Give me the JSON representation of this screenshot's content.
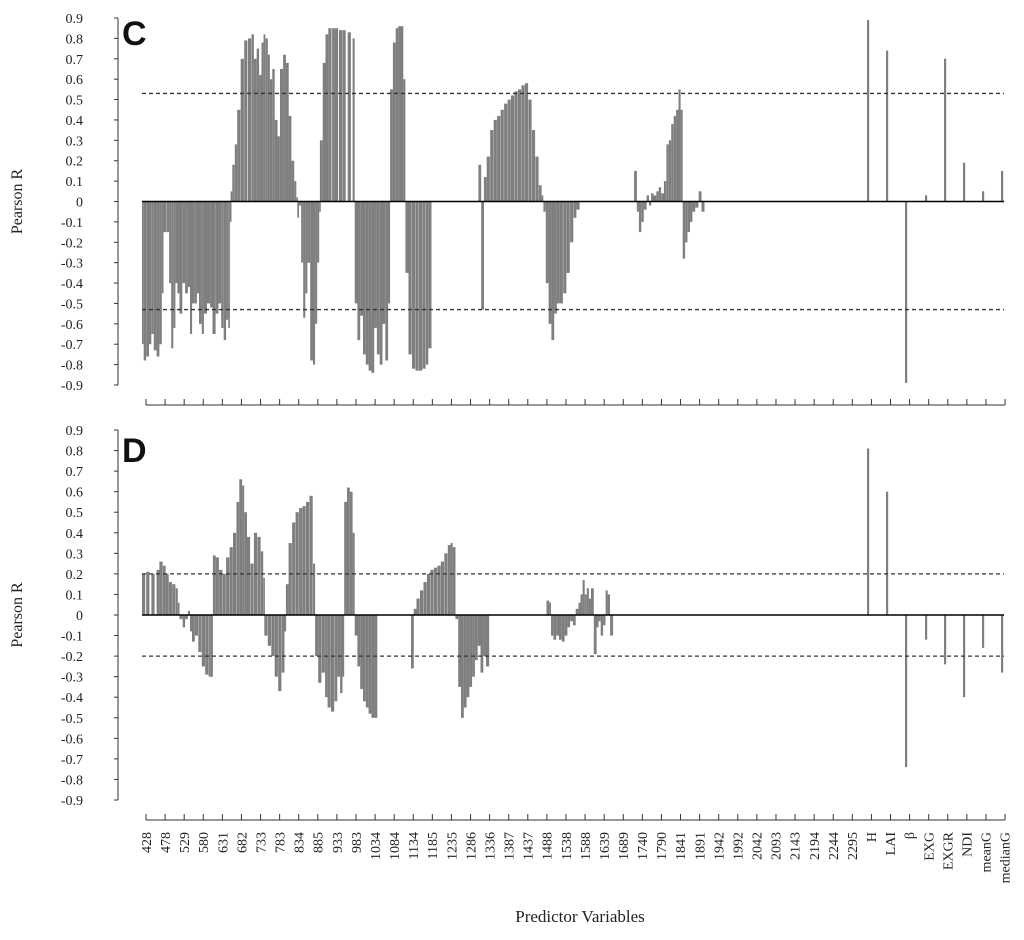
{
  "colors": {
    "bar": "#7f7f7f",
    "axis": "#333333",
    "threshold": "#333333"
  },
  "x_axis": {
    "title": "Predictor Variables",
    "wavelength_ticks": [
      "428",
      "478",
      "529",
      "580",
      "631",
      "682",
      "733",
      "783",
      "834",
      "885",
      "933",
      "983",
      "1034",
      "1084",
      "1134",
      "1185",
      "1235",
      "1286",
      "1336",
      "1387",
      "1437",
      "1488",
      "1538",
      "1588",
      "1639",
      "1689",
      "1740",
      "1790",
      "1841",
      "1891",
      "1942",
      "1992",
      "2042",
      "2093",
      "2143",
      "2194",
      "2244",
      "2295"
    ],
    "index_ticks": [
      "H",
      "LAI",
      "β",
      "EXG",
      "EXGR",
      "NDI",
      "meanG",
      "medianG"
    ]
  },
  "chart_data": [
    {
      "type": "bar",
      "panel": "C",
      "ylabel": "Pearson R",
      "ylim": [
        -0.9,
        0.9
      ],
      "y_ticks": [
        "0.9",
        "0.8",
        "0.7",
        "0.6",
        "0.5",
        "0.4",
        "0.3",
        "0.2",
        "0.1",
        "0",
        "-0.1",
        "-0.2",
        "-0.3",
        "-0.4",
        "-0.5",
        "-0.6",
        "-0.7",
        "-0.8",
        "-0.9"
      ],
      "thresholds": [
        0.53,
        -0.53
      ],
      "spectral_profile": [
        [
          428,
          -0.7
        ],
        [
          433,
          -0.78
        ],
        [
          440,
          -0.76
        ],
        [
          448,
          -0.7
        ],
        [
          455,
          -0.65
        ],
        [
          462,
          -0.73
        ],
        [
          470,
          -0.76
        ],
        [
          478,
          -0.7
        ],
        [
          485,
          -0.45
        ],
        [
          490,
          -0.15
        ],
        [
          500,
          -0.15
        ],
        [
          506,
          -0.4
        ],
        [
          512,
          -0.72
        ],
        [
          518,
          -0.62
        ],
        [
          524,
          -0.4
        ],
        [
          530,
          -0.45
        ],
        [
          536,
          -0.55
        ],
        [
          544,
          -0.4
        ],
        [
          552,
          -0.45
        ],
        [
          560,
          -0.42
        ],
        [
          566,
          -0.65
        ],
        [
          572,
          -0.5
        ],
        [
          580,
          -0.5
        ],
        [
          586,
          -0.45
        ],
        [
          592,
          -0.6
        ],
        [
          600,
          -0.65
        ],
        [
          606,
          -0.55
        ],
        [
          615,
          -0.5
        ],
        [
          624,
          -0.52
        ],
        [
          631,
          -0.65
        ],
        [
          640,
          -0.55
        ],
        [
          648,
          -0.5
        ],
        [
          656,
          -0.62
        ],
        [
          663,
          -0.68
        ],
        [
          670,
          -0.58
        ],
        [
          676,
          -0.62
        ],
        [
          681,
          -0.1
        ],
        [
          683,
          0.05
        ],
        [
          688,
          0.18
        ],
        [
          695,
          0.28
        ],
        [
          702,
          0.45
        ],
        [
          712,
          0.7
        ],
        [
          722,
          0.79
        ],
        [
          733,
          0.8
        ],
        [
          743,
          0.82
        ],
        [
          750,
          0.7
        ],
        [
          758,
          0.75
        ],
        [
          765,
          0.62
        ],
        [
          772,
          0.78
        ],
        [
          778,
          0.82
        ],
        [
          783,
          0.8
        ],
        [
          790,
          0.72
        ],
        [
          796,
          0.6
        ],
        [
          803,
          0.65
        ],
        [
          810,
          0.4
        ],
        [
          818,
          0.32
        ],
        [
          825,
          0.65
        ],
        [
          834,
          0.72
        ],
        [
          842,
          0.68
        ],
        [
          850,
          0.42
        ],
        [
          858,
          0.2
        ],
        [
          866,
          0.1
        ],
        [
          872,
          0.02
        ],
        [
          875,
          -0.08
        ],
        [
          880,
          -0.02
        ],
        [
          886,
          -0.3
        ],
        [
          892,
          -0.57
        ],
        [
          898,
          -0.45
        ],
        [
          904,
          -0.3
        ],
        [
          912,
          -0.78
        ],
        [
          920,
          -0.8
        ],
        [
          926,
          -0.6
        ],
        [
          932,
          -0.3
        ],
        [
          938,
          -0.05
        ],
        [
          940,
          0.3
        ],
        [
          948,
          0.68
        ],
        [
          956,
          0.82
        ],
        [
          964,
          0.85
        ],
        [
          975,
          0.85
        ],
        [
          983,
          0.85
        ],
        [
          995,
          0.84
        ],
        [
          1005,
          0.84
        ],
        [
          1020,
          0.83
        ],
        [
          1034,
          0.8
        ],
        [
          1040,
          -0.5
        ],
        [
          1048,
          -0.68
        ],
        [
          1056,
          -0.56
        ],
        [
          1064,
          -0.75
        ],
        [
          1072,
          -0.8
        ],
        [
          1080,
          -0.83
        ],
        [
          1088,
          -0.84
        ],
        [
          1096,
          -0.62
        ],
        [
          1104,
          -0.75
        ],
        [
          1112,
          -0.8
        ],
        [
          1120,
          -0.6
        ],
        [
          1128,
          -0.78
        ],
        [
          1136,
          -0.5
        ],
        [
          1142,
          0.55
        ],
        [
          1150,
          0.78
        ],
        [
          1158,
          0.85
        ],
        [
          1165,
          0.86
        ],
        [
          1172,
          0.86
        ],
        [
          1180,
          0.6
        ],
        [
          1186,
          -0.35
        ],
        [
          1195,
          -0.75
        ],
        [
          1205,
          -0.82
        ],
        [
          1215,
          -0.83
        ],
        [
          1225,
          -0.83
        ],
        [
          1235,
          -0.82
        ],
        [
          1245,
          -0.8
        ],
        [
          1252,
          -0.72
        ],
        [
          1396,
          0.18
        ],
        [
          1404,
          -0.53
        ],
        [
          1412,
          0.12
        ],
        [
          1420,
          0.22
        ],
        [
          1430,
          0.35
        ],
        [
          1440,
          0.4
        ],
        [
          1450,
          0.42
        ],
        [
          1460,
          0.45
        ],
        [
          1470,
          0.48
        ],
        [
          1480,
          0.5
        ],
        [
          1490,
          0.52
        ],
        [
          1500,
          0.54
        ],
        [
          1510,
          0.55
        ],
        [
          1520,
          0.57
        ],
        [
          1530,
          0.58
        ],
        [
          1540,
          0.5
        ],
        [
          1550,
          0.35
        ],
        [
          1560,
          0.22
        ],
        [
          1570,
          0.08
        ],
        [
          1578,
          0.03
        ],
        [
          1583,
          -0.05
        ],
        [
          1590,
          -0.4
        ],
        [
          1598,
          -0.6
        ],
        [
          1606,
          -0.68
        ],
        [
          1614,
          -0.55
        ],
        [
          1622,
          -0.5
        ],
        [
          1630,
          -0.5
        ],
        [
          1640,
          -0.45
        ],
        [
          1650,
          -0.35
        ],
        [
          1660,
          -0.2
        ],
        [
          1670,
          -0.08
        ],
        [
          1678,
          -0.04
        ],
        [
          1844,
          0.15
        ],
        [
          1852,
          -0.05
        ],
        [
          1858,
          -0.15
        ],
        [
          1865,
          -0.1
        ],
        [
          1872,
          -0.04
        ],
        [
          1880,
          0.03
        ],
        [
          1887,
          -0.02
        ],
        [
          1893,
          0.04
        ],
        [
          1900,
          0.03
        ],
        [
          1908,
          0.05
        ],
        [
          1915,
          0.07
        ],
        [
          1922,
          0.04
        ],
        [
          1930,
          0.1
        ],
        [
          1937,
          0.28
        ],
        [
          1944,
          0.3
        ],
        [
          1951,
          0.38
        ],
        [
          1958,
          0.42
        ],
        [
          1965,
          0.45
        ],
        [
          1972,
          0.55
        ],
        [
          1978,
          0.45
        ],
        [
          1984,
          -0.28
        ],
        [
          1991,
          -0.2
        ],
        [
          1998,
          -0.15
        ],
        [
          2005,
          -0.1
        ],
        [
          2012,
          -0.05
        ],
        [
          2020,
          -0.03
        ],
        [
          2030,
          0.05
        ],
        [
          2038,
          -0.05
        ]
      ],
      "indices": [
        {
          "name": "H",
          "r": 0.89
        },
        {
          "name": "LAI",
          "r": 0.74
        },
        {
          "name": "β",
          "r": -0.89
        },
        {
          "name": "EXG",
          "r": 0.03
        },
        {
          "name": "EXGR",
          "r": 0.7
        },
        {
          "name": "NDI",
          "r": 0.19
        },
        {
          "name": "meanG",
          "r": 0.05
        },
        {
          "name": "medianG",
          "r": 0.15
        }
      ]
    },
    {
      "type": "bar",
      "panel": "D",
      "ylabel": "Pearson R",
      "ylim": [
        -0.9,
        0.9
      ],
      "y_ticks": [
        "0.9",
        "0.8",
        "0.7",
        "0.6",
        "0.5",
        "0.4",
        "0.3",
        "0.2",
        "0.1",
        "0",
        "-0.1",
        "-0.2",
        "-0.3",
        "-0.4",
        "-0.5",
        "-0.6",
        "-0.7",
        "-0.8",
        "-0.9"
      ],
      "thresholds": [
        0.2,
        -0.2
      ],
      "spectral_profile": [
        [
          428,
          0.2
        ],
        [
          440,
          0.21
        ],
        [
          455,
          0.2
        ],
        [
          470,
          0.22
        ],
        [
          478,
          0.26
        ],
        [
          488,
          0.24
        ],
        [
          496,
          0.2
        ],
        [
          505,
          0.16
        ],
        [
          515,
          0.15
        ],
        [
          525,
          0.13
        ],
        [
          531,
          0.06
        ],
        [
          536,
          -0.02
        ],
        [
          545,
          -0.06
        ],
        [
          552,
          -0.02
        ],
        [
          560,
          0.02
        ],
        [
          566,
          -0.08
        ],
        [
          572,
          -0.13
        ],
        [
          580,
          -0.1
        ],
        [
          590,
          -0.18
        ],
        [
          600,
          -0.25
        ],
        [
          610,
          -0.29
        ],
        [
          620,
          -0.3
        ],
        [
          626,
          -0.3
        ],
        [
          632,
          0.29
        ],
        [
          640,
          0.28
        ],
        [
          650,
          0.22
        ],
        [
          660,
          0.2
        ],
        [
          670,
          0.28
        ],
        [
          680,
          0.33
        ],
        [
          690,
          0.4
        ],
        [
          700,
          0.55
        ],
        [
          708,
          0.66
        ],
        [
          716,
          0.63
        ],
        [
          722,
          0.5
        ],
        [
          730,
          0.38
        ],
        [
          740,
          0.25
        ],
        [
          750,
          0.4
        ],
        [
          760,
          0.38
        ],
        [
          770,
          0.31
        ],
        [
          777,
          0.18
        ],
        [
          780,
          -0.1
        ],
        [
          790,
          -0.15
        ],
        [
          800,
          -0.2
        ],
        [
          810,
          -0.3
        ],
        [
          820,
          -0.37
        ],
        [
          830,
          -0.28
        ],
        [
          838,
          -0.08
        ],
        [
          842,
          0.15
        ],
        [
          850,
          0.35
        ],
        [
          860,
          0.45
        ],
        [
          870,
          0.5
        ],
        [
          880,
          0.52
        ],
        [
          890,
          0.53
        ],
        [
          900,
          0.55
        ],
        [
          910,
          0.58
        ],
        [
          920,
          0.25
        ],
        [
          926,
          -0.2
        ],
        [
          935,
          -0.33
        ],
        [
          945,
          -0.28
        ],
        [
          955,
          -0.4
        ],
        [
          962,
          -0.45
        ],
        [
          972,
          -0.47
        ],
        [
          982,
          -0.42
        ],
        [
          990,
          -0.3
        ],
        [
          998,
          -0.38
        ],
        [
          1005,
          -0.3
        ],
        [
          1010,
          0.55
        ],
        [
          1018,
          0.62
        ],
        [
          1026,
          0.6
        ],
        [
          1034,
          0.4
        ],
        [
          1040,
          -0.1
        ],
        [
          1048,
          -0.25
        ],
        [
          1056,
          -0.36
        ],
        [
          1064,
          -0.42
        ],
        [
          1072,
          -0.45
        ],
        [
          1080,
          -0.48
        ],
        [
          1088,
          -0.5
        ],
        [
          1096,
          -0.5
        ],
        [
          1202,
          -0.26
        ],
        [
          1210,
          0.03
        ],
        [
          1218,
          0.08
        ],
        [
          1228,
          0.12
        ],
        [
          1238,
          0.16
        ],
        [
          1248,
          0.2
        ],
        [
          1258,
          0.22
        ],
        [
          1268,
          0.23
        ],
        [
          1278,
          0.24
        ],
        [
          1288,
          0.26
        ],
        [
          1298,
          0.3
        ],
        [
          1308,
          0.34
        ],
        [
          1316,
          0.35
        ],
        [
          1322,
          0.33
        ],
        [
          1330,
          -0.02
        ],
        [
          1338,
          -0.35
        ],
        [
          1346,
          -0.5
        ],
        [
          1354,
          -0.45
        ],
        [
          1362,
          -0.4
        ],
        [
          1370,
          -0.35
        ],
        [
          1378,
          -0.3
        ],
        [
          1386,
          -0.22
        ],
        [
          1394,
          -0.15
        ],
        [
          1402,
          -0.28
        ],
        [
          1410,
          -0.2
        ],
        [
          1418,
          -0.25
        ],
        [
          1592,
          0.07
        ],
        [
          1600,
          0.06
        ],
        [
          1605,
          -0.1
        ],
        [
          1612,
          -0.12
        ],
        [
          1620,
          -0.1
        ],
        [
          1628,
          -0.12
        ],
        [
          1636,
          -0.13
        ],
        [
          1644,
          -0.1
        ],
        [
          1652,
          -0.06
        ],
        [
          1660,
          -0.03
        ],
        [
          1668,
          -0.05
        ],
        [
          1676,
          0.03
        ],
        [
          1684,
          0.06
        ],
        [
          1690,
          0.1
        ],
        [
          1696,
          0.17
        ],
        [
          1702,
          0.1
        ],
        [
          1708,
          0.13
        ],
        [
          1714,
          0.08
        ],
        [
          1720,
          0.13
        ],
        [
          1728,
          -0.19
        ],
        [
          1736,
          -0.06
        ],
        [
          1742,
          -0.03
        ],
        [
          1748,
          -0.1
        ],
        [
          1755,
          -0.05
        ],
        [
          1762,
          0.12
        ],
        [
          1768,
          0.1
        ],
        [
          1775,
          -0.1
        ]
      ],
      "indices": [
        {
          "name": "H",
          "r": 0.81
        },
        {
          "name": "LAI",
          "r": 0.6
        },
        {
          "name": "β",
          "r": -0.74
        },
        {
          "name": "EXG",
          "r": -0.12
        },
        {
          "name": "EXGR",
          "r": -0.24
        },
        {
          "name": "NDI",
          "r": -0.4
        },
        {
          "name": "meanG",
          "r": -0.16
        },
        {
          "name": "medianG",
          "r": -0.28
        }
      ]
    }
  ]
}
